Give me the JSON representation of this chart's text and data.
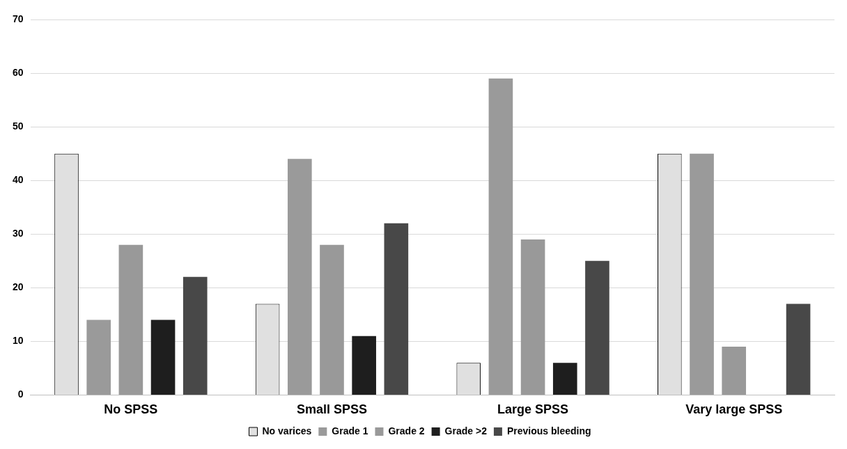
{
  "chart_data": {
    "type": "bar",
    "categories": [
      "No SPSS",
      "Small SPSS",
      "Large SPSS",
      "Vary large SPSS"
    ],
    "series": [
      {
        "name": "No varices",
        "color": "#e0e0e0",
        "values": [
          45,
          17,
          6,
          45
        ]
      },
      {
        "name": "Grade 1",
        "color": "#9a9a9a",
        "values": [
          14,
          44,
          59,
          45
        ]
      },
      {
        "name": "Grade 2",
        "color": "#999999",
        "values": [
          28,
          28,
          29,
          9
        ]
      },
      {
        "name": "Grade >2",
        "color": "#1e1e1e",
        "values": [
          14,
          11,
          6,
          0
        ]
      },
      {
        "name": "Previous bleeding",
        "color": "#484848",
        "values": [
          22,
          32,
          25,
          17
        ]
      }
    ],
    "ylim": [
      0,
      70
    ],
    "yticks": [
      0,
      10,
      20,
      30,
      40,
      50,
      60,
      70
    ],
    "grid": "y",
    "legend": "bottom"
  }
}
